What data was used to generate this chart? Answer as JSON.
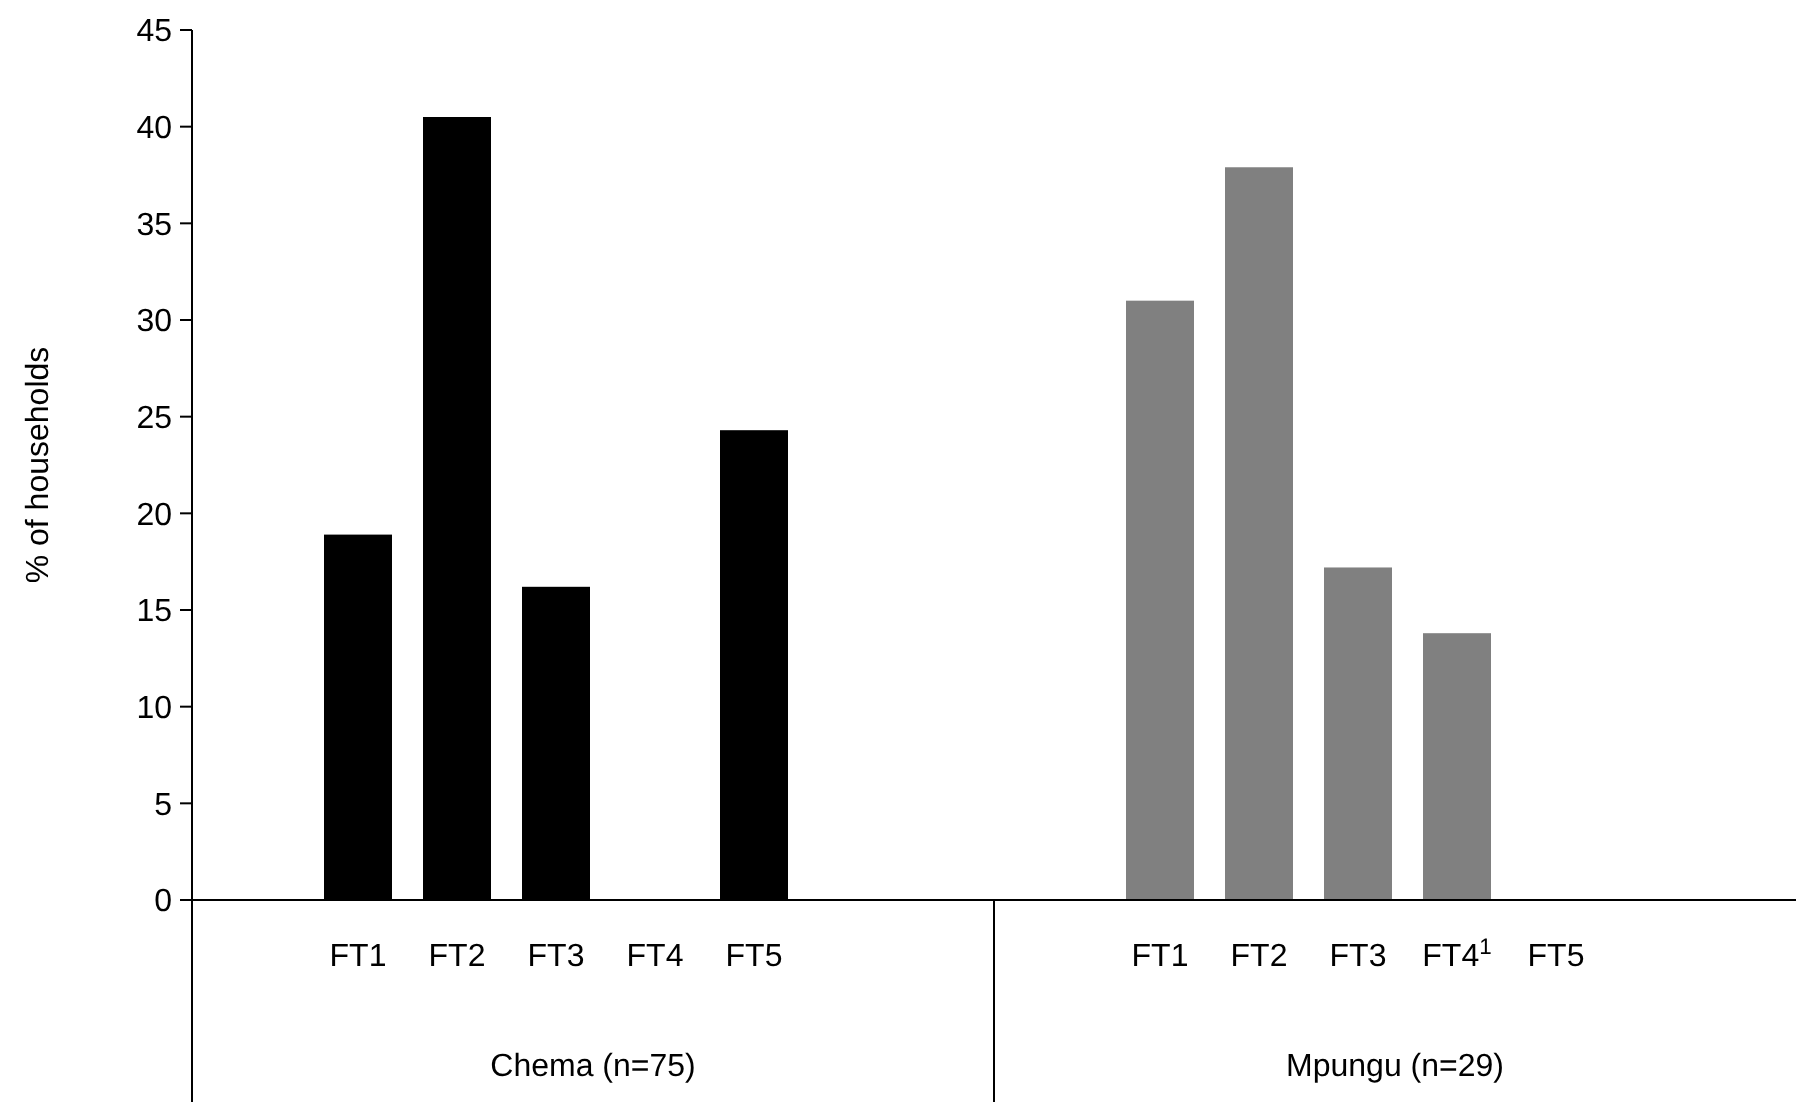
{
  "chart_data": {
    "type": "bar",
    "ylabel": "% of households",
    "categories": [
      "FT1",
      "FT2",
      "FT3",
      "FT4",
      "FT5",
      "FT1",
      "FT2",
      "FT3",
      "FT4$^{1}$",
      "FT5"
    ],
    "values": [
      18.9,
      40.5,
      16.2,
      0,
      24.3,
      31.0,
      37.9,
      17.2,
      13.8,
      0
    ],
    "colors": [
      "#000000",
      "#000000",
      "#000000",
      "#000000",
      "#000000",
      "#808080",
      "#808080",
      "#808080",
      "#808080",
      "#808080"
    ],
    "ylim": [
      0,
      45
    ],
    "yticks": [
      0,
      5,
      10,
      15,
      20,
      25,
      30,
      35,
      40,
      45
    ],
    "grid": false,
    "annotations": [
      "Chema (n=75)",
      "Mpungu (n=29)"
    ]
  }
}
